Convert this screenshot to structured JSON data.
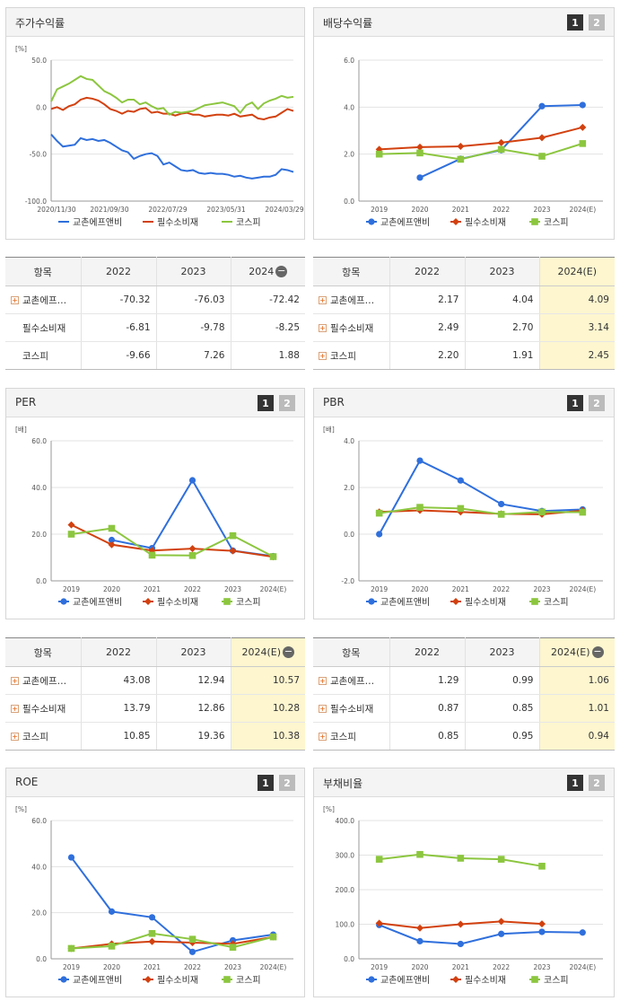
{
  "colors": {
    "s1": "#2f6fdc",
    "s2": "#d2410f",
    "s3": "#8cc63f",
    "axis": "#999999",
    "grid": "#e3e3e3",
    "text": "#333333",
    "highlight": "#fdf6cf"
  },
  "series_names": [
    "교촌에프앤비",
    "필수소비재",
    "코스피"
  ],
  "pager": {
    "one": "1",
    "two": "2"
  },
  "charts": [
    {
      "id": "stock",
      "title": "주가수익률",
      "unit": "[%]",
      "pager": false,
      "chart_data": {
        "type": "line",
        "title": "주가수익률",
        "ylabel": "[%]",
        "ylim": [
          -100,
          50
        ],
        "yticks": [
          50.0,
          0.0,
          -50.0,
          -100.0
        ],
        "ytick_labels": [
          "50.0",
          "0.0",
          "-50.0",
          "-100.0"
        ],
        "xtick_labels": [
          "2020/11/30",
          "2021/09/30",
          "2022/07/29",
          "2023/05/31",
          "2024/03/29"
        ],
        "markers": false,
        "series": [
          {
            "name": "교촌에프앤비",
            "values": [
              -29,
              -36,
              -42,
              -41,
              -40,
              -33,
              -35,
              -34,
              -36,
              -35,
              -38,
              -42,
              -46,
              -48,
              -55,
              -52,
              -50,
              -49,
              -52,
              -61,
              -59,
              -63,
              -67,
              -68,
              -67,
              -70,
              -71,
              -70,
              -71,
              -71,
              -72,
              -74,
              -73,
              -75,
              -76,
              -75,
              -74,
              -74,
              -72,
              -66,
              -67,
              -69
            ]
          },
          {
            "name": "필수소비재",
            "values": [
              -2,
              0,
              -3,
              1,
              3,
              8,
              10,
              9,
              7,
              3,
              -2,
              -4,
              -7,
              -4,
              -5,
              -2,
              -1,
              -6,
              -5,
              -7,
              -7,
              -9,
              -7,
              -6,
              -8,
              -8,
              -10,
              -9,
              -8,
              -8,
              -9,
              -7,
              -10,
              -9,
              -8,
              -12,
              -13,
              -11,
              -10,
              -6,
              -2,
              -4
            ]
          },
          {
            "name": "코스피",
            "values": [
              6,
              19,
              22,
              25,
              29,
              33,
              30,
              29,
              23,
              17,
              14,
              10,
              5,
              8,
              8,
              3,
              5,
              1,
              -2,
              -1,
              -8,
              -5,
              -6,
              -5,
              -4,
              -1,
              2,
              3,
              4,
              5,
              3,
              1,
              -6,
              2,
              5,
              -2,
              4,
              7,
              9,
              12,
              10,
              11
            ]
          }
        ]
      }
    },
    {
      "id": "dividend",
      "title": "배당수익률",
      "unit": "",
      "pager": true,
      "chart_data": {
        "type": "line",
        "title": "배당수익률",
        "ylim": [
          0,
          6
        ],
        "yticks": [
          0.0,
          2.0,
          4.0,
          6.0
        ],
        "ytick_labels": [
          "0.0",
          "2.0",
          "4.0",
          "6.0"
        ],
        "categories": [
          "2019",
          "2020",
          "2021",
          "2022",
          "2023",
          "2024(E)"
        ],
        "series": [
          {
            "name": "교촌에프앤비",
            "values": [
              null,
              1.0,
              1.8,
              2.17,
              4.04,
              4.09
            ]
          },
          {
            "name": "필수소비재",
            "values": [
              2.2,
              2.3,
              2.33,
              2.49,
              2.7,
              3.14
            ]
          },
          {
            "name": "코스피",
            "values": [
              2.0,
              2.05,
              1.78,
              2.2,
              1.91,
              2.45
            ]
          }
        ]
      }
    },
    {
      "id": "per",
      "title": "PER",
      "unit": "[배]",
      "pager": true,
      "chart_data": {
        "type": "line",
        "title": "PER",
        "ylabel": "[배]",
        "ylim": [
          0,
          60
        ],
        "yticks": [
          0.0,
          20.0,
          40.0,
          60.0
        ],
        "ytick_labels": [
          "0.0",
          "20.0",
          "40.0",
          "60.0"
        ],
        "categories": [
          "2019",
          "2020",
          "2021",
          "2022",
          "2023",
          "2024(E)"
        ],
        "series": [
          {
            "name": "교촌에프앤비",
            "values": [
              null,
              17.5,
              14.0,
              43.08,
              12.94,
              10.57
            ]
          },
          {
            "name": "필수소비재",
            "values": [
              24.0,
              15.5,
              13.0,
              13.79,
              12.86,
              10.28
            ]
          },
          {
            "name": "코스피",
            "values": [
              20.0,
              22.5,
              11.0,
              10.85,
              19.36,
              10.38
            ]
          }
        ]
      }
    },
    {
      "id": "pbr",
      "title": "PBR",
      "unit": "[배]",
      "pager": true,
      "chart_data": {
        "type": "line",
        "title": "PBR",
        "ylabel": "[배]",
        "ylim": [
          -2,
          4
        ],
        "yticks": [
          -2.0,
          0.0,
          2.0,
          4.0
        ],
        "ytick_labels": [
          "-2.0",
          "0.0",
          "2.0",
          "4.0"
        ],
        "categories": [
          "2019",
          "2020",
          "2021",
          "2022",
          "2023",
          "2024(E)"
        ],
        "series": [
          {
            "name": "교촌에프앤비",
            "values": [
              0.0,
              3.15,
              2.3,
              1.29,
              0.99,
              1.06
            ]
          },
          {
            "name": "필수소비재",
            "values": [
              0.95,
              1.02,
              0.95,
              0.87,
              0.85,
              1.01
            ]
          },
          {
            "name": "코스피",
            "values": [
              0.9,
              1.15,
              1.1,
              0.85,
              0.95,
              0.94
            ]
          }
        ]
      }
    },
    {
      "id": "roe",
      "title": "ROE",
      "unit": "[%]",
      "pager": true,
      "chart_data": {
        "type": "line",
        "title": "ROE",
        "ylabel": "[%]",
        "ylim": [
          0,
          60
        ],
        "yticks": [
          0.0,
          20.0,
          40.0,
          60.0
        ],
        "ytick_labels": [
          "0.0",
          "20.0",
          "40.0",
          "60.0"
        ],
        "categories": [
          "2019",
          "2020",
          "2021",
          "2022",
          "2023",
          "2024(E)"
        ],
        "series": [
          {
            "name": "교촌에프앤비",
            "values": [
              44.0,
              20.5,
              18.0,
              3.0,
              8.0,
              10.5
            ]
          },
          {
            "name": "필수소비재",
            "values": [
              4.5,
              6.5,
              7.5,
              7.0,
              6.5,
              9.5
            ]
          },
          {
            "name": "코스피",
            "values": [
              4.5,
              5.5,
              11.0,
              8.5,
              5.0,
              9.5
            ]
          }
        ]
      }
    },
    {
      "id": "debt",
      "title": "부채비율",
      "unit": "[%]",
      "pager": true,
      "chart_data": {
        "type": "line",
        "title": "부채비율",
        "ylabel": "[%]",
        "ylim": [
          0,
          400
        ],
        "yticks": [
          0.0,
          100.0,
          200.0,
          300.0,
          400.0
        ],
        "ytick_labels": [
          "0.0",
          "100.0",
          "200.0",
          "300.0",
          "400.0"
        ],
        "categories": [
          "2019",
          "2020",
          "2021",
          "2022",
          "2023",
          "2024(E)"
        ],
        "series": [
          {
            "name": "교촌에프앤비",
            "values": [
              98,
              51,
              43,
              72,
              78,
              76
            ]
          },
          {
            "name": "필수소비재",
            "values": [
              103,
              89,
              100,
              108,
              101,
              null
            ]
          },
          {
            "name": "코스피",
            "values": [
              288,
              302,
              291,
              288,
              268,
              null
            ]
          }
        ]
      }
    }
  ],
  "tables": [
    {
      "id": "stock_table",
      "headers": [
        "항목",
        "2022",
        "2023",
        "2024"
      ],
      "header_minus": true,
      "highlight_last": false,
      "rows": [
        {
          "name": "교촌에프…",
          "plus": true,
          "values": [
            "-70.32",
            "-76.03",
            "-72.42"
          ]
        },
        {
          "name": "필수소비재",
          "plus": false,
          "values": [
            "-6.81",
            "-9.78",
            "-8.25"
          ]
        },
        {
          "name": "코스피",
          "plus": false,
          "values": [
            "-9.66",
            "7.26",
            "1.88"
          ]
        }
      ]
    },
    {
      "id": "dividend_table",
      "headers": [
        "항목",
        "2022",
        "2023",
        "2024(E)"
      ],
      "header_minus": false,
      "highlight_last": true,
      "rows": [
        {
          "name": "교촌에프…",
          "plus": true,
          "values": [
            "2.17",
            "4.04",
            "4.09"
          ]
        },
        {
          "name": "필수소비재",
          "plus": true,
          "values": [
            "2.49",
            "2.70",
            "3.14"
          ]
        },
        {
          "name": "코스피",
          "plus": true,
          "values": [
            "2.20",
            "1.91",
            "2.45"
          ]
        }
      ]
    },
    {
      "id": "per_table",
      "headers": [
        "항목",
        "2022",
        "2023",
        "2024(E)"
      ],
      "header_minus": true,
      "highlight_last": true,
      "rows": [
        {
          "name": "교촌에프…",
          "plus": true,
          "values": [
            "43.08",
            "12.94",
            "10.57"
          ]
        },
        {
          "name": "필수소비재",
          "plus": true,
          "values": [
            "13.79",
            "12.86",
            "10.28"
          ]
        },
        {
          "name": "코스피",
          "plus": true,
          "values": [
            "10.85",
            "19.36",
            "10.38"
          ]
        }
      ]
    },
    {
      "id": "pbr_table",
      "headers": [
        "항목",
        "2022",
        "2023",
        "2024(E)"
      ],
      "header_minus": true,
      "highlight_last": true,
      "rows": [
        {
          "name": "교촌에프…",
          "plus": true,
          "values": [
            "1.29",
            "0.99",
            "1.06"
          ]
        },
        {
          "name": "필수소비재",
          "plus": true,
          "values": [
            "0.87",
            "0.85",
            "1.01"
          ]
        },
        {
          "name": "코스피",
          "plus": true,
          "values": [
            "0.85",
            "0.95",
            "0.94"
          ]
        }
      ]
    }
  ]
}
